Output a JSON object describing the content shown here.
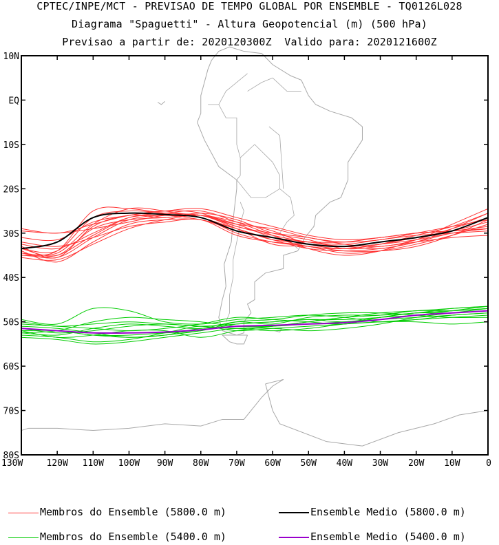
{
  "header": {
    "line1": "CPTEC/INPE/MCT - PREVISAO DE TEMPO GLOBAL POR ENSEMBLE - TQ0126L028",
    "line2": "Diagrama \"Spaguetti\" - Altura Geopotencial (m) (500 hPa)",
    "line3": "Previsao a partir de: 2020120300Z  Valido para: 2020121600Z"
  },
  "chart_data": {
    "type": "line",
    "title": "Diagrama \"Spaguetti\" - Altura Geopotencial (m) (500 hPa)",
    "xlim": [
      -130,
      0
    ],
    "ylim": [
      -80,
      10
    ],
    "x_ticks": [
      {
        "value": -130,
        "label": "130W"
      },
      {
        "value": -120,
        "label": "120W"
      },
      {
        "value": -110,
        "label": "110W"
      },
      {
        "value": -100,
        "label": "100W"
      },
      {
        "value": -90,
        "label": "90W"
      },
      {
        "value": -80,
        "label": "80W"
      },
      {
        "value": -70,
        "label": "70W"
      },
      {
        "value": -60,
        "label": "60W"
      },
      {
        "value": -50,
        "label": "50W"
      },
      {
        "value": -40,
        "label": "40W"
      },
      {
        "value": -30,
        "label": "30W"
      },
      {
        "value": -20,
        "label": "20W"
      },
      {
        "value": -10,
        "label": "10W"
      },
      {
        "value": 0,
        "label": "0"
      }
    ],
    "y_ticks": [
      {
        "value": 10,
        "label": "10N"
      },
      {
        "value": 0,
        "label": "EQ"
      },
      {
        "value": -10,
        "label": "10S"
      },
      {
        "value": -20,
        "label": "20S"
      },
      {
        "value": -30,
        "label": "30S"
      },
      {
        "value": -40,
        "label": "40S"
      },
      {
        "value": -50,
        "label": "50S"
      },
      {
        "value": -60,
        "label": "60S"
      },
      {
        "value": -70,
        "label": "70S"
      },
      {
        "value": -80,
        "label": "80S"
      }
    ],
    "x": [
      -130,
      -120,
      -110,
      -100,
      -90,
      -80,
      -70,
      -60,
      -50,
      -40,
      -30,
      -20,
      -10,
      0
    ],
    "series": [
      {
        "name": "Ensemble Medio (5800.0 m)",
        "color": "#000000",
        "width": 2,
        "values": [
          -33.5,
          -32.0,
          -26.5,
          -25.5,
          -25.8,
          -26.5,
          -29.5,
          -31.0,
          -32.5,
          -33.0,
          -32.0,
          -31.0,
          -29.5,
          -26.5
        ]
      },
      {
        "name": "Ensemble Medio (5400.0 m)",
        "color": "#9900cc",
        "width": 2,
        "values": [
          -51.5,
          -52.0,
          -52.5,
          -52.5,
          -52.3,
          -51.8,
          -51.0,
          -50.8,
          -50.5,
          -50.2,
          -49.5,
          -48.5,
          -48.0,
          -47.5
        ]
      }
    ],
    "members_5800": [
      [
        -29.0,
        -30.0,
        -28.0,
        -26.0,
        -25.0,
        -25.5,
        -28.5,
        -30.0,
        -31.0,
        -32.5,
        -33.0,
        -31.5,
        -28.0,
        -24.5
      ],
      [
        -34.5,
        -35.5,
        -31.0,
        -27.0,
        -26.0,
        -27.0,
        -29.0,
        -31.5,
        -33.5,
        -34.0,
        -33.5,
        -32.0,
        -29.0,
        -25.5
      ],
      [
        -35.0,
        -34.0,
        -25.0,
        -24.5,
        -25.5,
        -26.0,
        -28.5,
        -30.5,
        -32.0,
        -32.5,
        -31.5,
        -30.5,
        -30.0,
        -29.5
      ],
      [
        -32.5,
        -33.5,
        -30.0,
        -26.5,
        -26.0,
        -26.5,
        -30.0,
        -32.0,
        -33.0,
        -34.5,
        -34.0,
        -32.5,
        -30.5,
        -28.0
      ],
      [
        -35.5,
        -36.0,
        -32.5,
        -29.0,
        -27.0,
        -26.0,
        -27.5,
        -29.5,
        -32.5,
        -33.5,
        -32.5,
        -31.0,
        -29.5,
        -27.5
      ],
      [
        -33.0,
        -35.5,
        -28.5,
        -26.0,
        -26.5,
        -25.5,
        -27.0,
        -30.0,
        -31.5,
        -33.5,
        -33.0,
        -32.0,
        -31.0,
        -30.5
      ],
      [
        -31.0,
        -31.5,
        -27.5,
        -26.0,
        -25.0,
        -24.5,
        -26.5,
        -28.5,
        -30.5,
        -31.5,
        -31.0,
        -30.0,
        -29.5,
        -28.5
      ],
      [
        -34.0,
        -36.5,
        -32.0,
        -28.0,
        -27.0,
        -27.0,
        -29.5,
        -31.0,
        -32.0,
        -33.0,
        -32.5,
        -31.5,
        -30.0,
        -29.0
      ],
      [
        -29.5,
        -30.0,
        -29.0,
        -27.5,
        -26.0,
        -26.0,
        -29.0,
        -32.5,
        -33.0,
        -34.0,
        -34.0,
        -33.0,
        -30.5,
        -27.0
      ],
      [
        -33.5,
        -34.0,
        -26.5,
        -25.0,
        -25.5,
        -26.0,
        -28.0,
        -29.0,
        -31.0,
        -32.0,
        -31.5,
        -30.0,
        -28.5,
        -27.0
      ],
      [
        -35.0,
        -35.0,
        -30.5,
        -26.5,
        -25.5,
        -25.0,
        -27.5,
        -30.5,
        -33.5,
        -35.0,
        -34.0,
        -31.5,
        -29.0,
        -26.5
      ],
      [
        -32.0,
        -33.0,
        -31.0,
        -28.5,
        -27.5,
        -27.0,
        -30.5,
        -32.0,
        -32.5,
        -33.0,
        -33.5,
        -32.0,
        -30.0,
        -29.0
      ],
      [
        -34.5,
        -34.5,
        -28.0,
        -24.5,
        -25.0,
        -26.5,
        -29.0,
        -31.5,
        -32.0,
        -32.0,
        -31.0,
        -30.0,
        -29.5,
        -29.0
      ],
      [
        -33.5,
        -35.0,
        -29.0,
        -27.0,
        -26.5,
        -26.0,
        -28.0,
        -31.0,
        -33.0,
        -33.5,
        -32.5,
        -30.5,
        -28.5,
        -25.5
      ]
    ],
    "members_5400": [
      [
        -51.5,
        -52.0,
        -53.0,
        -53.5,
        -53.0,
        -52.0,
        -50.5,
        -50.0,
        -49.5,
        -50.0,
        -49.0,
        -48.0,
        -47.5,
        -47.0
      ],
      [
        -52.5,
        -53.0,
        -51.5,
        -50.5,
        -51.0,
        -51.5,
        -50.0,
        -50.5,
        -49.0,
        -48.5,
        -48.5,
        -48.0,
        -47.0,
        -46.5
      ],
      [
        -53.0,
        -53.5,
        -54.5,
        -54.0,
        -52.5,
        -51.0,
        -52.0,
        -51.5,
        -51.0,
        -50.5,
        -50.0,
        -49.5,
        -49.0,
        -48.5
      ],
      [
        -49.5,
        -50.5,
        -47.0,
        -47.5,
        -50.0,
        -50.5,
        -49.5,
        -49.0,
        -48.5,
        -49.0,
        -50.0,
        -49.5,
        -48.5,
        -48.0
      ],
      [
        -52.0,
        -53.5,
        -53.0,
        -52.0,
        -52.0,
        -53.5,
        -52.0,
        -51.0,
        -50.0,
        -49.0,
        -48.0,
        -47.5,
        -47.0,
        -46.5
      ],
      [
        -51.0,
        -51.5,
        -52.5,
        -53.5,
        -53.0,
        -51.5,
        -51.5,
        -52.0,
        -51.5,
        -50.5,
        -50.0,
        -50.0,
        -50.5,
        -50.0
      ],
      [
        -52.5,
        -52.0,
        -50.0,
        -49.0,
        -49.5,
        -50.0,
        -51.0,
        -51.0,
        -50.5,
        -50.0,
        -49.5,
        -49.0,
        -48.5,
        -48.0
      ],
      [
        -50.5,
        -51.0,
        -51.5,
        -52.0,
        -51.5,
        -50.5,
        -49.0,
        -49.5,
        -50.0,
        -50.5,
        -49.0,
        -48.0,
        -48.0,
        -47.5
      ],
      [
        -53.5,
        -54.0,
        -55.0,
        -54.5,
        -53.5,
        -52.5,
        -51.5,
        -51.5,
        -52.0,
        -51.5,
        -50.5,
        -49.0,
        -48.0,
        -47.0
      ],
      [
        -51.5,
        -52.5,
        -52.0,
        -51.0,
        -50.5,
        -51.0,
        -50.5,
        -50.0,
        -49.5,
        -49.5,
        -49.0,
        -48.5,
        -47.5,
        -46.5
      ],
      [
        -52.0,
        -52.0,
        -53.0,
        -53.0,
        -52.5,
        -52.0,
        -50.0,
        -49.5,
        -48.5,
        -48.0,
        -48.0,
        -48.5,
        -49.0,
        -49.0
      ],
      [
        -50.0,
        -51.0,
        -50.5,
        -50.0,
        -50.5,
        -51.0,
        -51.5,
        -51.0,
        -50.0,
        -49.0,
        -48.5,
        -47.5,
        -47.5,
        -47.0
      ]
    ],
    "member_colors": {
      "m5800": "#ff3333",
      "m5400": "#00cc00"
    },
    "legend": [
      {
        "label": "Membros do Ensemble (5800.0 m)",
        "color": "#ff3333",
        "width": 1
      },
      {
        "label": "Ensemble Medio (5800.0 m)",
        "color": "#000000",
        "width": 2
      },
      {
        "label": "Membros do Ensemble (5400.0 m)",
        "color": "#00cc00",
        "width": 1
      },
      {
        "label": "Ensemble Medio (5400.0 m)",
        "color": "#9900cc",
        "width": 2
      }
    ],
    "legend_position": "bottom",
    "map_color": "#a8a8a8"
  }
}
